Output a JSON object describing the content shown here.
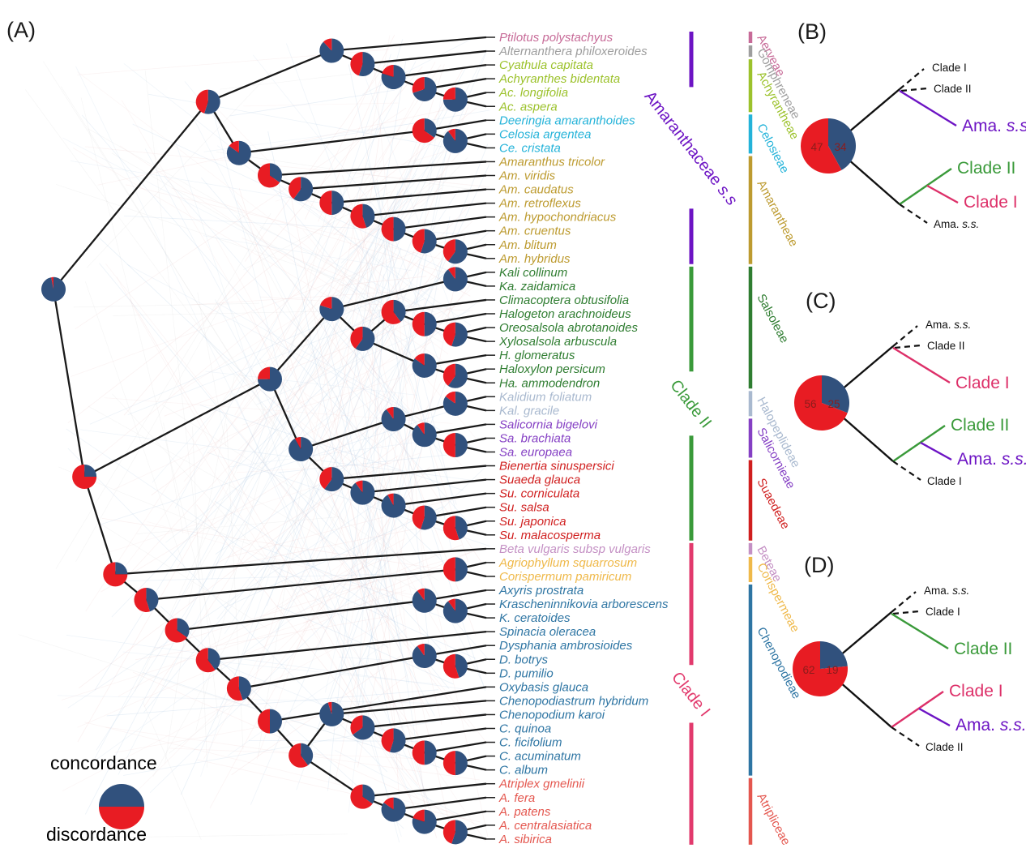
{
  "colors": {
    "concordance_blue": "#31517d",
    "discordance_red": "#e81c23",
    "purple": "#6d14c4",
    "green": "#3a9a3a",
    "crimson": "#dd3069",
    "edge_black": "#1a1a1a",
    "cloud_blue": "#8fb4d8",
    "cloud_pink": "#e7b6b6",
    "pie_number": "#8b1c1c"
  },
  "panel_a": {
    "label": "(A)"
  },
  "legend": {
    "concordance": "concordance",
    "discordance": "discordance"
  },
  "species": [
    "Ptilotus polystachyus",
    "Alternanthera philoxeroides",
    "Cyathula capitata",
    "Achyranthes bidentata",
    "Ac. longifolia",
    "Ac. aspera",
    "Deeringia amaranthoides",
    "Celosia argentea",
    "Ce. cristata",
    "Amaranthus tricolor",
    "Am. viridis",
    "Am. caudatus",
    "Am. retroflexus",
    "Am. hypochondriacus",
    "Am. cruentus",
    "Am. blitum",
    "Am. hybridus",
    "Kali collinum",
    "Ka. zaidamica",
    "Climacoptera obtusifolia",
    "Halogeton arachnoideus",
    "Oreosalsola abrotanoides",
    "Xylosalsola arbuscula",
    "H. glomeratus",
    "Haloxylon persicum",
    "Ha. ammodendron",
    "Kalidium foliatum",
    "Kal. gracile",
    "Salicornia bigelovi",
    "Sa. brachiata",
    "Sa. europaea",
    "Bienertia sinuspersici",
    "Suaeda glauca",
    "Su. corniculata",
    "Su. salsa",
    "Su. japonica",
    "Su. malacosperma",
    "Beta vulgaris subsp vulgaris",
    "Agriophyllum squarrosum",
    "Corispermum pamiricum",
    "Axyris prostrata",
    "Krascheninnikovia arborescens",
    "K. ceratoides",
    "Spinacia oleracea",
    "Dysphania ambrosioides",
    "D. botrys",
    "D. pumilio",
    "Oxybasis glauca",
    "Chenopodiastrum hybridum",
    "Chenopodium karoi",
    "C. quinoa",
    "C. ficifolium",
    "C. acuminatum",
    "C. album",
    "Atriplex gmelinii",
    "A. fera",
    "A. patens",
    "A. centralasiatica",
    "A. sibirica"
  ],
  "tribes": [
    {
      "name": "Aerveae",
      "color": "#c76b98",
      "from": 0,
      "to": 0
    },
    {
      "name": "Gomphreneae",
      "color": "#9e9e9e",
      "from": 1,
      "to": 1
    },
    {
      "name": "Achyrantheae",
      "color": "#9cc22c",
      "from": 2,
      "to": 5
    },
    {
      "name": "Celosieae",
      "color": "#24b3d9",
      "from": 6,
      "to": 8
    },
    {
      "name": "Amarantheae",
      "color": "#bd9b30",
      "from": 9,
      "to": 16
    },
    {
      "name": "Salsoleae",
      "color": "#2f7d31",
      "from": 17,
      "to": 25
    },
    {
      "name": "Halopeplideae",
      "color": "#a9b9cf",
      "from": 26,
      "to": 27
    },
    {
      "name": "Salicornieae",
      "color": "#8540c4",
      "from": 28,
      "to": 30
    },
    {
      "name": "Suaedeae",
      "color": "#d01f1f",
      "from": 31,
      "to": 36
    },
    {
      "name": "Beteae",
      "color": "#c490c4",
      "from": 37,
      "to": 37
    },
    {
      "name": "Corispermeae",
      "color": "#efb94a",
      "from": 38,
      "to": 39
    },
    {
      "name": "Chenopodieae",
      "color": "#2e75a3",
      "from": 40,
      "to": 53
    },
    {
      "name": "Atripliceae",
      "color": "#e4574f",
      "from": 54,
      "to": 58
    }
  ],
  "clades": [
    {
      "name": "Amaranthaceae s.s",
      "color": "#6d14c4",
      "from": 0,
      "to": 16
    },
    {
      "name": "Clade II",
      "color": "#3a9a3a",
      "from": 17,
      "to": 36
    },
    {
      "name": "Clade I",
      "color": "#e23a6d",
      "from": 37,
      "to": 58
    }
  ],
  "tree": {
    "c": 0.97,
    "ch": [
      {
        "c": 0.55,
        "ch": [
          {
            "c": 0.88,
            "ch": [
              0,
              {
                "c": 0.55,
                "ch": [
                  1,
                  {
                    "c": 0.8,
                    "ch": [
                      2,
                      {
                        "c": 0.7,
                        "ch": [
                          3,
                          {
                            "c": 0.75,
                            "ch": [
                              4,
                              5
                            ]
                          }
                        ]
                      }
                    ]
                  }
                ]
              }
            ]
          },
          {
            "c": 0.85,
            "ch": [
              {
                "c": 0.35,
                "ch": [
                  6,
                  {
                    "c": 0.9,
                    "ch": [
                      7,
                      8
                    ]
                  }
                ]
              },
              {
                "c": 0.35,
                "ch": [
                  9,
                  {
                    "c": 0.6,
                    "ch": [
                      10,
                      {
                        "c": 0.5,
                        "ch": [
                          11,
                          {
                            "c": 0.45,
                            "ch": [
                              12,
                              {
                                "c": 0.5,
                                "ch": [
                                  13,
                                  {
                                    "c": 0.55,
                                    "ch": [
                                      14,
                                      {
                                        "c": 0.6,
                                        "ch": [
                                          15,
                                          16
                                        ]
                                      }
                                    ]
                                  }
                                ]
                              }
                            ]
                          }
                        ]
                      }
                    ]
                  }
                ]
              }
            ]
          }
        ]
      },
      {
        "c": 0.25,
        "ch": [
          {
            "c": 0.75,
            "ch": [
              {
                "c": 0.8,
                "ch": [
                  {
                    "c": 0.9,
                    "ch": [
                      17,
                      18
                    ]
                  },
                  {
                    "c": 0.6,
                    "ch": [
                      {
                        "c": 0.4,
                        "ch": [
                          19,
                          {
                            "c": 0.5,
                            "ch": [
                              20,
                              {
                                "c": 0.55,
                                "ch": [
                                  21,
                                  22
                                ]
                              }
                            ]
                          }
                        ]
                      },
                      {
                        "c": 0.85,
                        "ch": [
                          23,
                          {
                            "c": 0.6,
                            "ch": [
                              24,
                              25
                            ]
                          }
                        ]
                      }
                    ]
                  }
                ]
              },
              {
                "c": 0.92,
                "ch": [
                  {
                    "c": 0.9,
                    "ch": [
                      {
                        "c": 0.85,
                        "ch": [
                          26,
                          27
                        ]
                      },
                      {
                        "c": 0.9,
                        "ch": [
                          28,
                          {
                            "c": 0.5,
                            "ch": [
                              29,
                              30
                            ]
                          }
                        ]
                      }
                    ]
                  },
                  {
                    "c": 0.6,
                    "ch": [
                      31,
                      {
                        "c": 0.9,
                        "ch": [
                          32,
                          {
                            "c": 0.92,
                            "ch": [
                              33,
                              {
                                "c": 0.55,
                                "ch": [
                                  34,
                                  {
                                    "c": 0.45,
                                    "ch": [
                                      35,
                                      36
                                    ]
                                  }
                                ]
                              }
                            ]
                          }
                        ]
                      }
                    ]
                  }
                ]
              }
            ]
          },
          {
            "c": 0.25,
            "ch": [
              37,
              {
                "c": 0.45,
                "ch": [
                  {
                    "c": 0.5,
                    "ch": [
                      38,
                      39
                    ]
                  },
                  {
                    "c": 0.35,
                    "ch": [
                      {
                        "c": 0.9,
                        "ch": [
                          40,
                          {
                            "c": 0.9,
                            "ch": [
                              41,
                              42
                            ]
                          }
                        ]
                      },
                      {
                        "c": 0.4,
                        "ch": [
                          43,
                          {
                            "c": 0.45,
                            "ch": [
                              {
                                "c": 0.9,
                                "ch": [
                                  44,
                                  {
                                    "c": 0.45,
                                    "ch": [
                                      45,
                                      46
                                    ]
                                  }
                                ]
                              },
                              {
                                "c": 0.5,
                                "ch": [
                                  47,
                                  {
                                    "c": 0.4,
                                    "ch": [
                                      {
                                        "c": 0.95,
                                        "ch": [
                                          48,
                                          {
                                            "c": 0.65,
                                            "ch": [
                                              49,
                                              {
                                                "c": 0.55,
                                                "ch": [
                                                  50,
                                                  {
                                                    "c": 0.5,
                                                    "ch": [
                                                      51,
                                                      {
                                                        "c": 0.5,
                                                        "ch": [
                                                          52,
                                                          53
                                                        ]
                                                      }
                                                    ]
                                                  }
                                                ]
                                              }
                                            ]
                                          }
                                        ]
                                      },
                                      {
                                        "c": 0.35,
                                        "ch": [
                                          54,
                                          {
                                            "c": 0.85,
                                            "ch": [
                                              55,
                                              {
                                                "c": 0.8,
                                                "ch": [
                                                  56,
                                                  {
                                                    "c": 0.55,
                                                    "ch": [
                                                      57,
                                                      58
                                                    ]
                                                  }
                                                ]
                                              }
                                            ]
                                          }
                                        ]
                                      }
                                    ]
                                  }
                                ]
                              }
                            ]
                          }
                        ]
                      }
                    ]
                  }
                ]
              }
            ]
          }
        ]
      }
    ]
  },
  "panels": [
    {
      "letter": "(B)",
      "pie": {
        "discordance": 47,
        "concordance": 34
      },
      "top": {
        "dashed": [
          "Clade I",
          "Clade II"
        ],
        "big": {
          "label": "Ama. s.s.",
          "color": "#6d14c4"
        }
      },
      "bottom": {
        "big1": {
          "label": "Clade II",
          "color": "#3a9a3a"
        },
        "big2": {
          "label": "Clade I",
          "color": "#dd3069"
        },
        "dashed": "Ama. s.s."
      }
    },
    {
      "letter": "(C)",
      "pie": {
        "discordance": 56,
        "concordance": 25
      },
      "top": {
        "dashed": [
          "Ama. s.s.",
          "Clade II"
        ],
        "big": {
          "label": "Clade I",
          "color": "#dd3069"
        }
      },
      "bottom": {
        "big1": {
          "label": "Clade II",
          "color": "#3a9a3a"
        },
        "big2": {
          "label": "Ama. s.s.",
          "color": "#6d14c4"
        },
        "dashed": "Clade I"
      }
    },
    {
      "letter": "(D)",
      "pie": {
        "discordance": 62,
        "concordance": 19
      },
      "top": {
        "dashed": [
          "Ama. s.s.",
          "Clade I"
        ],
        "big": {
          "label": "Clade II",
          "color": "#3a9a3a"
        }
      },
      "bottom": {
        "big1": {
          "label": "Clade I",
          "color": "#dd3069"
        },
        "big2": {
          "label": "Ama. s.s.",
          "color": "#6d14c4"
        },
        "dashed": "Clade II"
      }
    }
  ]
}
